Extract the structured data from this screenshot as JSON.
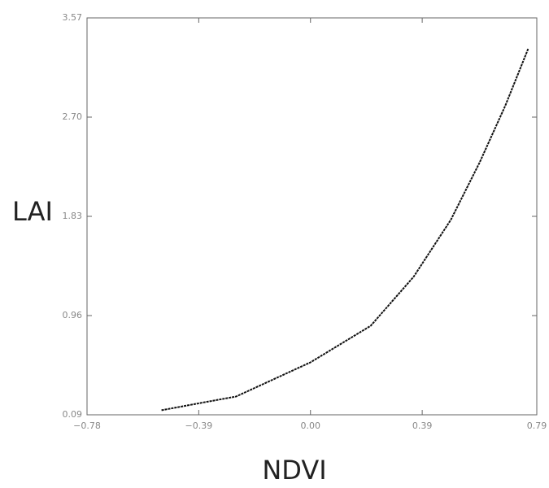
{
  "chart_data": {
    "type": "line",
    "x_label": "NDVI",
    "y_label": "LAI",
    "x": [
      -0.52,
      -0.37,
      -0.26,
      0.0,
      0.21,
      0.36,
      0.49,
      0.59,
      0.68,
      0.76
    ],
    "series": [
      {
        "name": "LAI",
        "color": "#111111",
        "values": [
          0.13,
          0.2,
          0.25,
          0.55,
          0.87,
          1.3,
          1.8,
          2.3,
          2.8,
          3.3
        ]
      }
    ],
    "xlim": [
      -0.78,
      0.79
    ],
    "xticks": [
      {
        "value": -0.78,
        "label": "−0.78"
      },
      {
        "value": -0.39,
        "label": "−0.39"
      },
      {
        "value": 0,
        "label": "0.00"
      },
      0.39,
      0.79
    ],
    "ylim": [
      0.09,
      3.57
    ],
    "yticks": [
      0.09,
      0.96,
      1.83,
      {
        "value": 2.7,
        "label": "2.70"
      },
      3.57
    ]
  }
}
